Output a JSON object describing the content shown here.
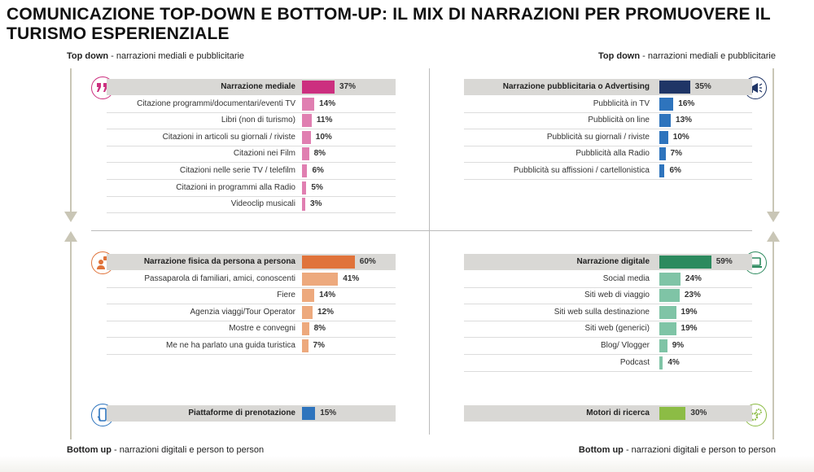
{
  "title": "COMUNICAZIONE TOP-DOWN E BOTTOM-UP: IL MIX DI NARRAZIONI PER PROMUOVERE IL TURISMO ESPERIENZIALE",
  "corners": {
    "top_left": {
      "bold": "Top down",
      "text": " - narrazioni mediali e pubblicitarie"
    },
    "top_right": {
      "bold": "Top down",
      "text": " - narrazioni mediali e pubblicitarie"
    },
    "bottom_left": {
      "bold": "Bottom up",
      "text": " - narrazioni digitali e person to person"
    },
    "bottom_right": {
      "bold": "Bottom up",
      "text": " - narrazioni digitali e person to person"
    }
  },
  "icons": {
    "q1": "quote-icon",
    "q2": "megaphone-icon",
    "q3": "person-speech-icon",
    "q4": "laptop-icon",
    "q5": "smartphone-icon",
    "q6": "gears-icon"
  },
  "colors": {
    "q1_head": "#cc2f7f",
    "q1_item": "#e07fb1",
    "q2_head": "#1f3566",
    "q2_item": "#2e74bd",
    "q3_head": "#e0733a",
    "q3_item": "#eda97d",
    "q4_head": "#2c8a5e",
    "q4_item": "#7fc4a6",
    "q5_item": "#2e74bd",
    "q6_item": "#8cbc45"
  },
  "chart_data": [
    {
      "type": "bar",
      "title": "Narrazione mediale",
      "categories": [
        "Narrazione mediale",
        "Citazione programmi/documentari/eventi TV",
        "Libri (non di turismo)",
        "Citazioni in articoli su giornali / riviste",
        "Citazioni nei Film",
        "Citazioni nelle serie TV / telefilm",
        "Citazioni in programmi alla Radio",
        "Videoclip musicali"
      ],
      "values": [
        37,
        14,
        11,
        10,
        8,
        6,
        5,
        3
      ],
      "labels": [
        "37%",
        "14%",
        "11%",
        "10%",
        "8%",
        "6%",
        "5%",
        "3%"
      ]
    },
    {
      "type": "bar",
      "title": "Narrazione pubblicitaria o Advertising",
      "categories": [
        "Narrazione pubblicitaria o Advertising",
        "Pubblicità in TV",
        "Pubblicità on line",
        "Pubblicità su giornali / riviste",
        "Pubblicità alla Radio",
        "Pubblicità su affissioni / cartellonistica"
      ],
      "values": [
        35,
        16,
        13,
        10,
        7,
        6
      ],
      "labels": [
        "35%",
        "16%",
        "13%",
        "10%",
        "7%",
        "6%"
      ]
    },
    {
      "type": "bar",
      "title": "Narrazione fisica da persona a persona",
      "categories": [
        "Narrazione fisica da persona a persona",
        "Passaparola di familiari, amici, conoscenti",
        "Fiere",
        "Agenzia viaggi/Tour Operator",
        "Mostre e convegni",
        "Me ne ha parlato una guida turistica"
      ],
      "values": [
        60,
        41,
        14,
        12,
        8,
        7
      ],
      "labels": [
        "60%",
        "41%",
        "14%",
        "12%",
        "8%",
        "7%"
      ]
    },
    {
      "type": "bar",
      "title": "Narrazione digitale",
      "categories": [
        "Narrazione digitale",
        "Social media",
        "Siti web di viaggio",
        "Siti web sulla destinazione",
        "Siti web (generici)",
        "Blog/ Vlogger",
        "Podcast"
      ],
      "values": [
        59,
        24,
        23,
        19,
        19,
        9,
        4
      ],
      "labels": [
        "59%",
        "24%",
        "23%",
        "19%",
        "19%",
        "9%",
        "4%"
      ]
    },
    {
      "type": "bar",
      "title": "Piattaforme di prenotazione",
      "categories": [
        "Piattaforme di prenotazione"
      ],
      "values": [
        15
      ],
      "labels": [
        "15%"
      ]
    },
    {
      "type": "bar",
      "title": "Motori di ricerca",
      "categories": [
        "Motori di ricerca"
      ],
      "values": [
        30
      ],
      "labels": [
        "30%"
      ]
    }
  ]
}
